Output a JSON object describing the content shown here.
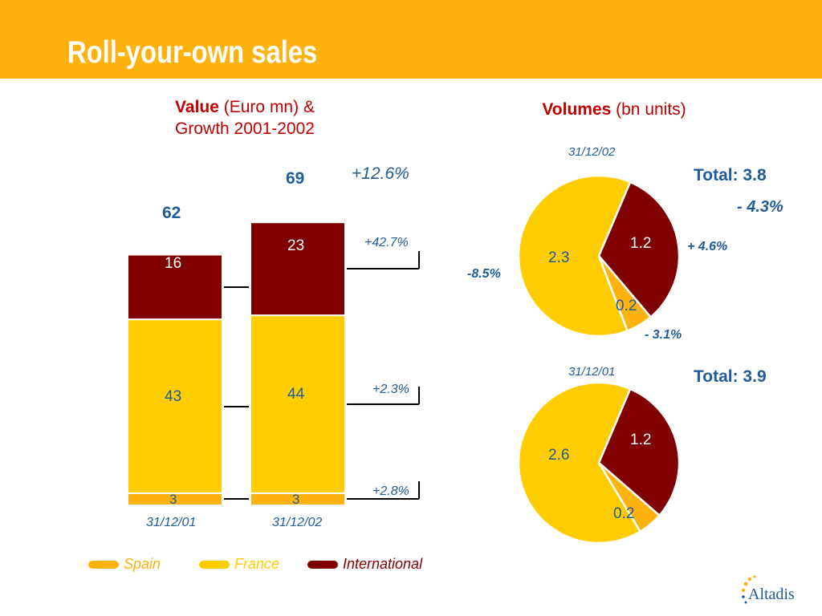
{
  "page": {
    "title": "Roll-your-own sales",
    "logo_text": "Altadis",
    "colors": {
      "header": "#FDB20F",
      "spain": "#FDB20F",
      "france": "#FFCC00",
      "international": "#800000",
      "title_red": "#C00000",
      "label_blue": "#1F5C99"
    }
  },
  "value_chart": {
    "title_bold": "Value",
    "title_rest": " (Euro mn) &",
    "title_line2": "Growth 2001-2002",
    "total_growth": "+12.6%",
    "growths": {
      "international": "+42.7%",
      "france": "+2.3%",
      "spain": "+2.8%"
    }
  },
  "volume_chart": {
    "title_bold": "Volumes",
    "title_rest": " (bn units)"
  },
  "legend": [
    {
      "label": "Spain",
      "color": "#FDB20F"
    },
    {
      "label": "France",
      "color": "#FFCC00"
    },
    {
      "label": "International",
      "color": "#800000"
    }
  ],
  "chart_data": [
    {
      "type": "bar",
      "stacked": true,
      "title": "Value (Euro mn) & Growth 2001-2002",
      "categories": [
        "31/12/01",
        "31/12/02"
      ],
      "series": [
        {
          "name": "Spain",
          "values": [
            3,
            3
          ],
          "labels": [
            "3",
            "3"
          ],
          "color": "#FDB20F"
        },
        {
          "name": "France",
          "values": [
            43,
            44
          ],
          "labels": [
            "43",
            "44"
          ],
          "color": "#FFCC00"
        },
        {
          "name": "International",
          "values": [
            16,
            23
          ],
          "labels": [
            "16",
            "23"
          ],
          "color": "#800000"
        }
      ],
      "totals": [
        "62",
        "69"
      ]
    },
    {
      "type": "pie",
      "date": "31/12/02",
      "total_label": "Total: 3.8",
      "total_change": "- 4.3%",
      "slices": [
        {
          "name": "International",
          "value": 1.2,
          "label": "1.2",
          "change": "+ 4.6%",
          "color": "#800000"
        },
        {
          "name": "Spain",
          "value": 0.2,
          "label": "0.2",
          "change": "- 3.1%",
          "color": "#FDB20F"
        },
        {
          "name": "France",
          "value": 2.3,
          "label": "2.3",
          "change": "-8.5%",
          "color": "#FFCC00"
        }
      ]
    },
    {
      "type": "pie",
      "date": "31/12/01",
      "total_label": "Total: 3.9",
      "slices": [
        {
          "name": "International",
          "value": 1.2,
          "label": "1.2",
          "color": "#800000"
        },
        {
          "name": "Spain",
          "value": 0.2,
          "label": "0.2",
          "color": "#FDB20F"
        },
        {
          "name": "France",
          "value": 2.6,
          "label": "2.6",
          "color": "#FFCC00"
        }
      ]
    }
  ]
}
